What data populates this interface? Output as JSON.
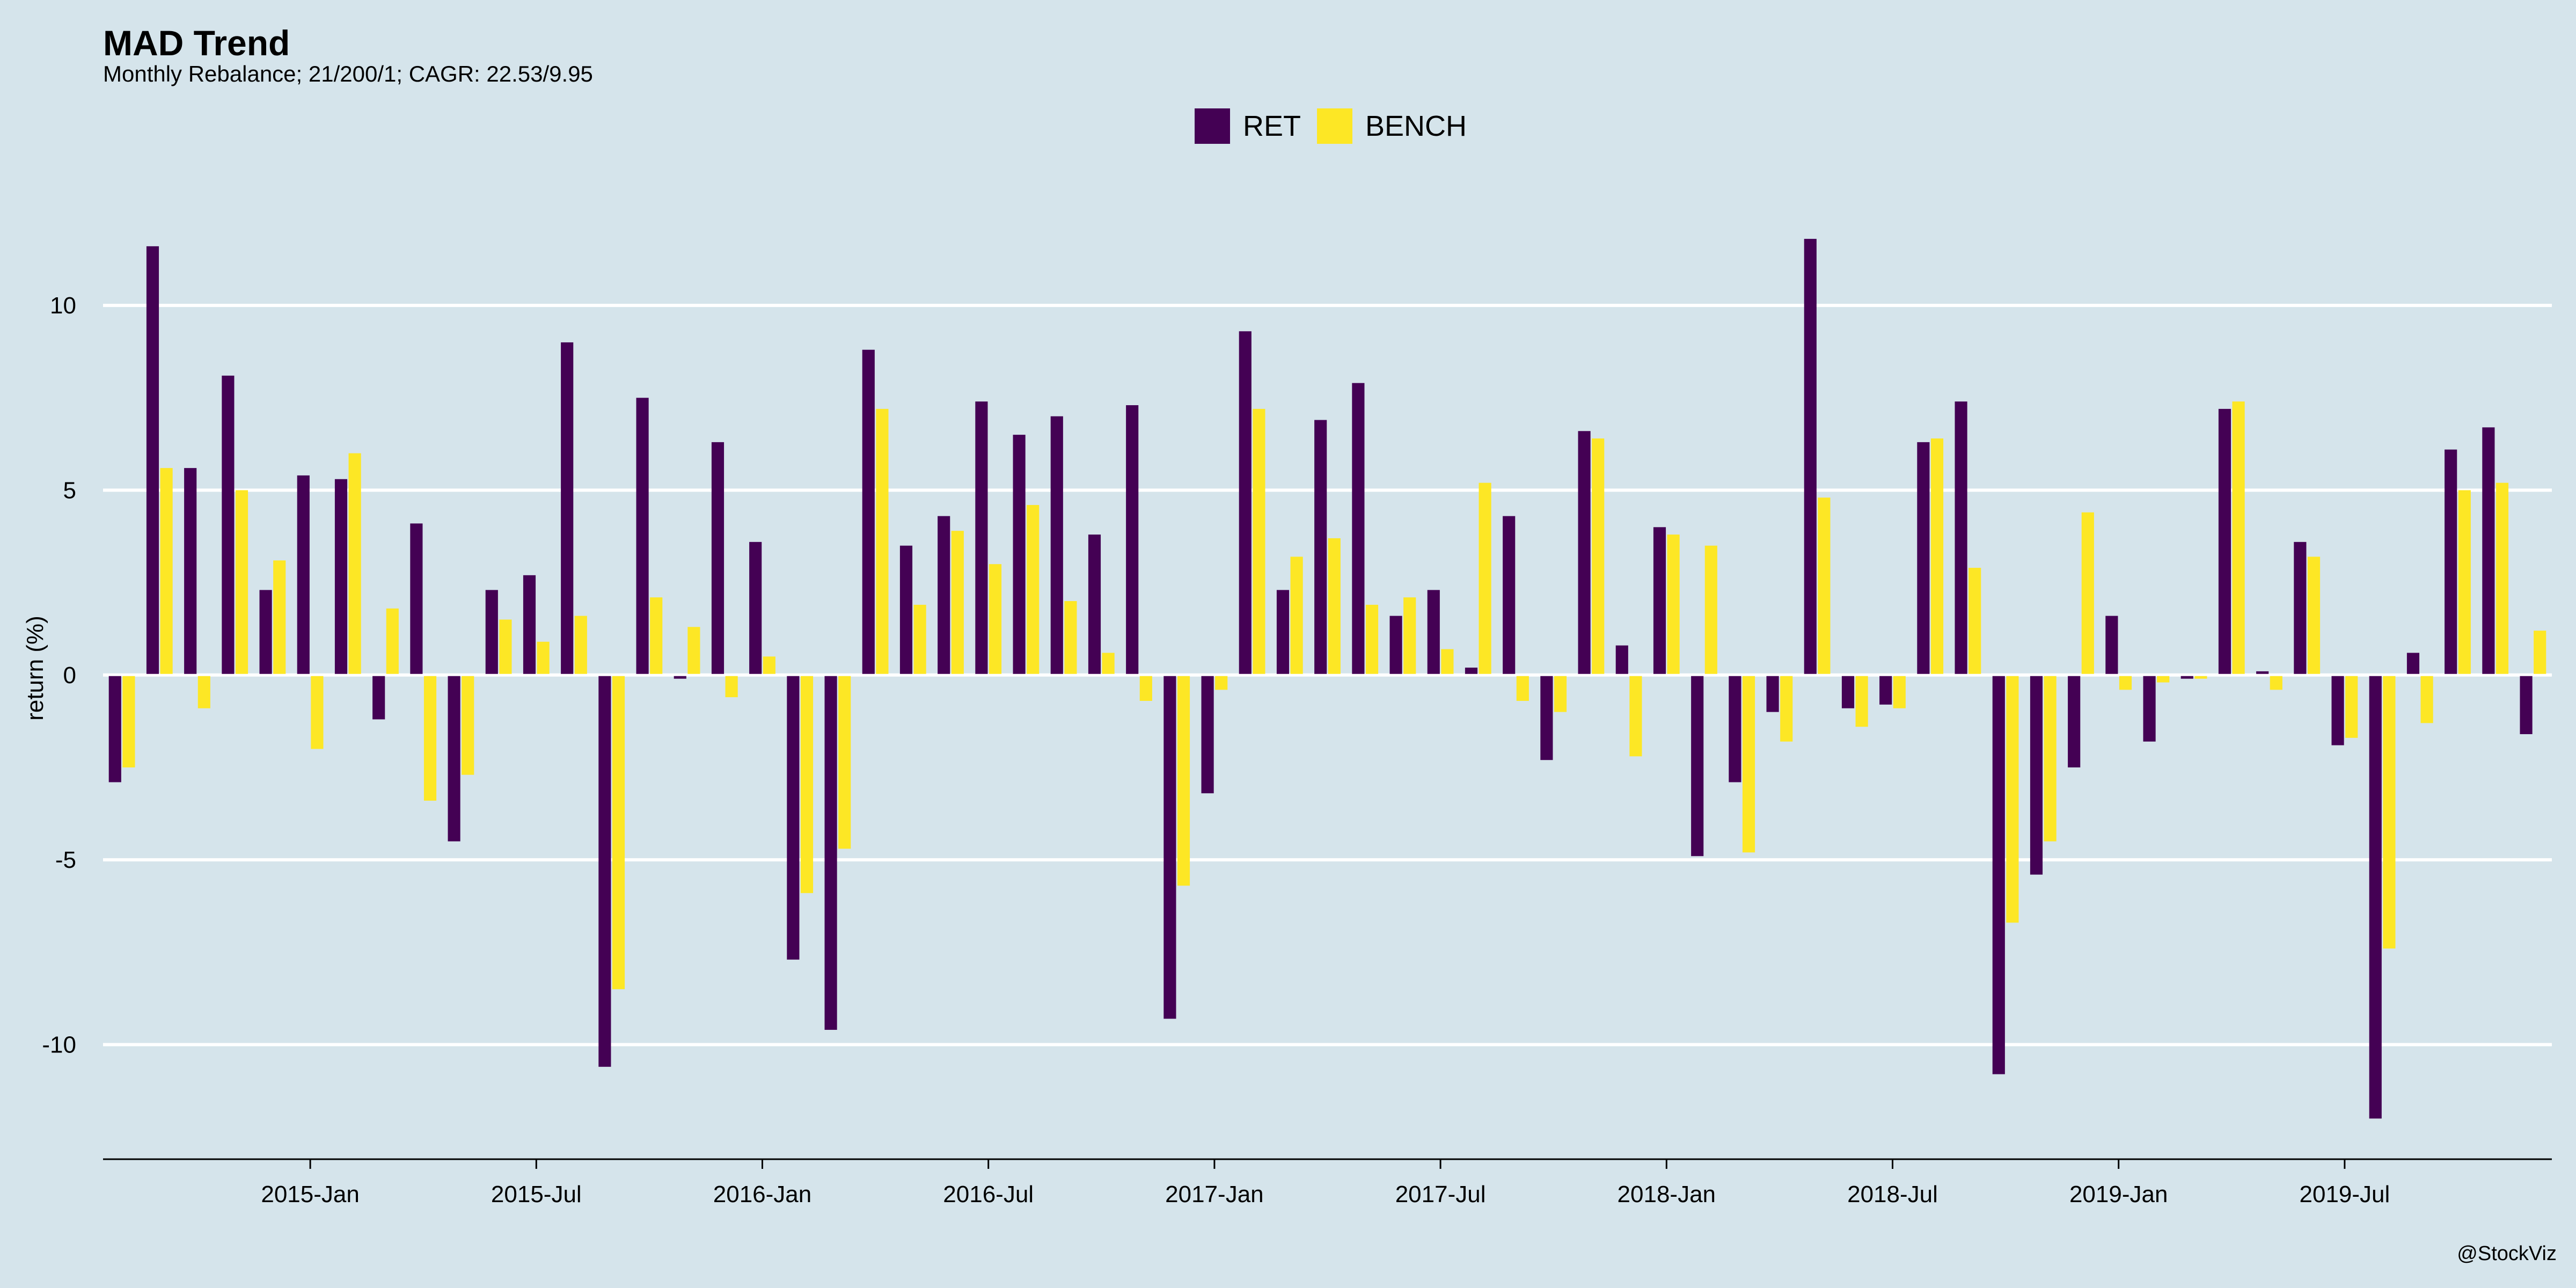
{
  "chart_data": {
    "type": "bar",
    "title": "MAD Trend",
    "subtitle": "Monthly Rebalance; 21/200/1; CAGR: 22.53/9.95",
    "ylabel": "return (%)",
    "xlabel": "",
    "caption": "@StockViz",
    "legend_position": "top",
    "grid": "horizontal",
    "ylim": [
      -13.1,
      12.6
    ],
    "yticks": [
      10,
      5,
      0,
      -5,
      -10
    ],
    "xtick_labels": [
      {
        "label": "2015-Jan",
        "index": 5.5
      },
      {
        "label": "2015-Jul",
        "index": 11.5
      },
      {
        "label": "2016-Jan",
        "index": 17.5
      },
      {
        "label": "2016-Jul",
        "index": 23.5
      },
      {
        "label": "2017-Jan",
        "index": 29.5
      },
      {
        "label": "2017-Jul",
        "index": 35.5
      },
      {
        "label": "2018-Jan",
        "index": 41.5
      },
      {
        "label": "2018-Jul",
        "index": 47.5
      },
      {
        "label": "2019-Jan",
        "index": 53.5
      },
      {
        "label": "2019-Jul",
        "index": 59.5
      }
    ],
    "series": [
      {
        "name": "RET",
        "color": "#440154",
        "values": [
          -2.9,
          11.6,
          5.6,
          8.1,
          2.3,
          5.4,
          5.3,
          -1.2,
          4.1,
          -4.5,
          2.3,
          2.7,
          9.0,
          -10.6,
          7.5,
          -0.1,
          6.3,
          3.6,
          -7.7,
          -9.6,
          8.8,
          3.5,
          4.3,
          7.4,
          6.5,
          7.0,
          3.8,
          7.3,
          -9.3,
          -3.2,
          9.3,
          2.3,
          6.9,
          7.9,
          1.6,
          2.3,
          0.2,
          4.3,
          -2.3,
          6.6,
          0.8,
          4.0,
          -4.9,
          -2.9,
          -1.0,
          11.8,
          -0.9,
          -0.8,
          6.3,
          7.4,
          -10.8,
          -5.4,
          -2.5,
          1.6,
          -1.8,
          -0.1,
          7.2,
          0.1,
          3.6,
          -1.9,
          -12.0,
          0.6,
          6.1,
          6.7,
          -1.6
        ]
      },
      {
        "name": "BENCH",
        "color": "#fde725",
        "values": [
          -2.5,
          5.6,
          -0.9,
          5.0,
          3.1,
          -2.0,
          6.0,
          1.8,
          -3.4,
          -2.7,
          1.5,
          0.9,
          1.6,
          -8.5,
          2.1,
          1.3,
          -0.6,
          0.5,
          -5.9,
          -4.7,
          7.2,
          1.9,
          3.9,
          3.0,
          4.6,
          2.0,
          0.6,
          -0.7,
          -5.7,
          -0.4,
          7.2,
          3.2,
          3.7,
          1.9,
          2.1,
          0.7,
          5.2,
          -0.7,
          -1.0,
          6.4,
          -2.2,
          3.8,
          3.5,
          -4.8,
          -1.8,
          4.8,
          -1.4,
          -0.9,
          6.4,
          2.9,
          -6.7,
          -4.5,
          4.4,
          -0.4,
          -0.2,
          -0.1,
          7.4,
          -0.4,
          3.2,
          -1.7,
          -7.4,
          -1.3,
          5.0,
          5.2,
          1.2
        ]
      }
    ]
  }
}
